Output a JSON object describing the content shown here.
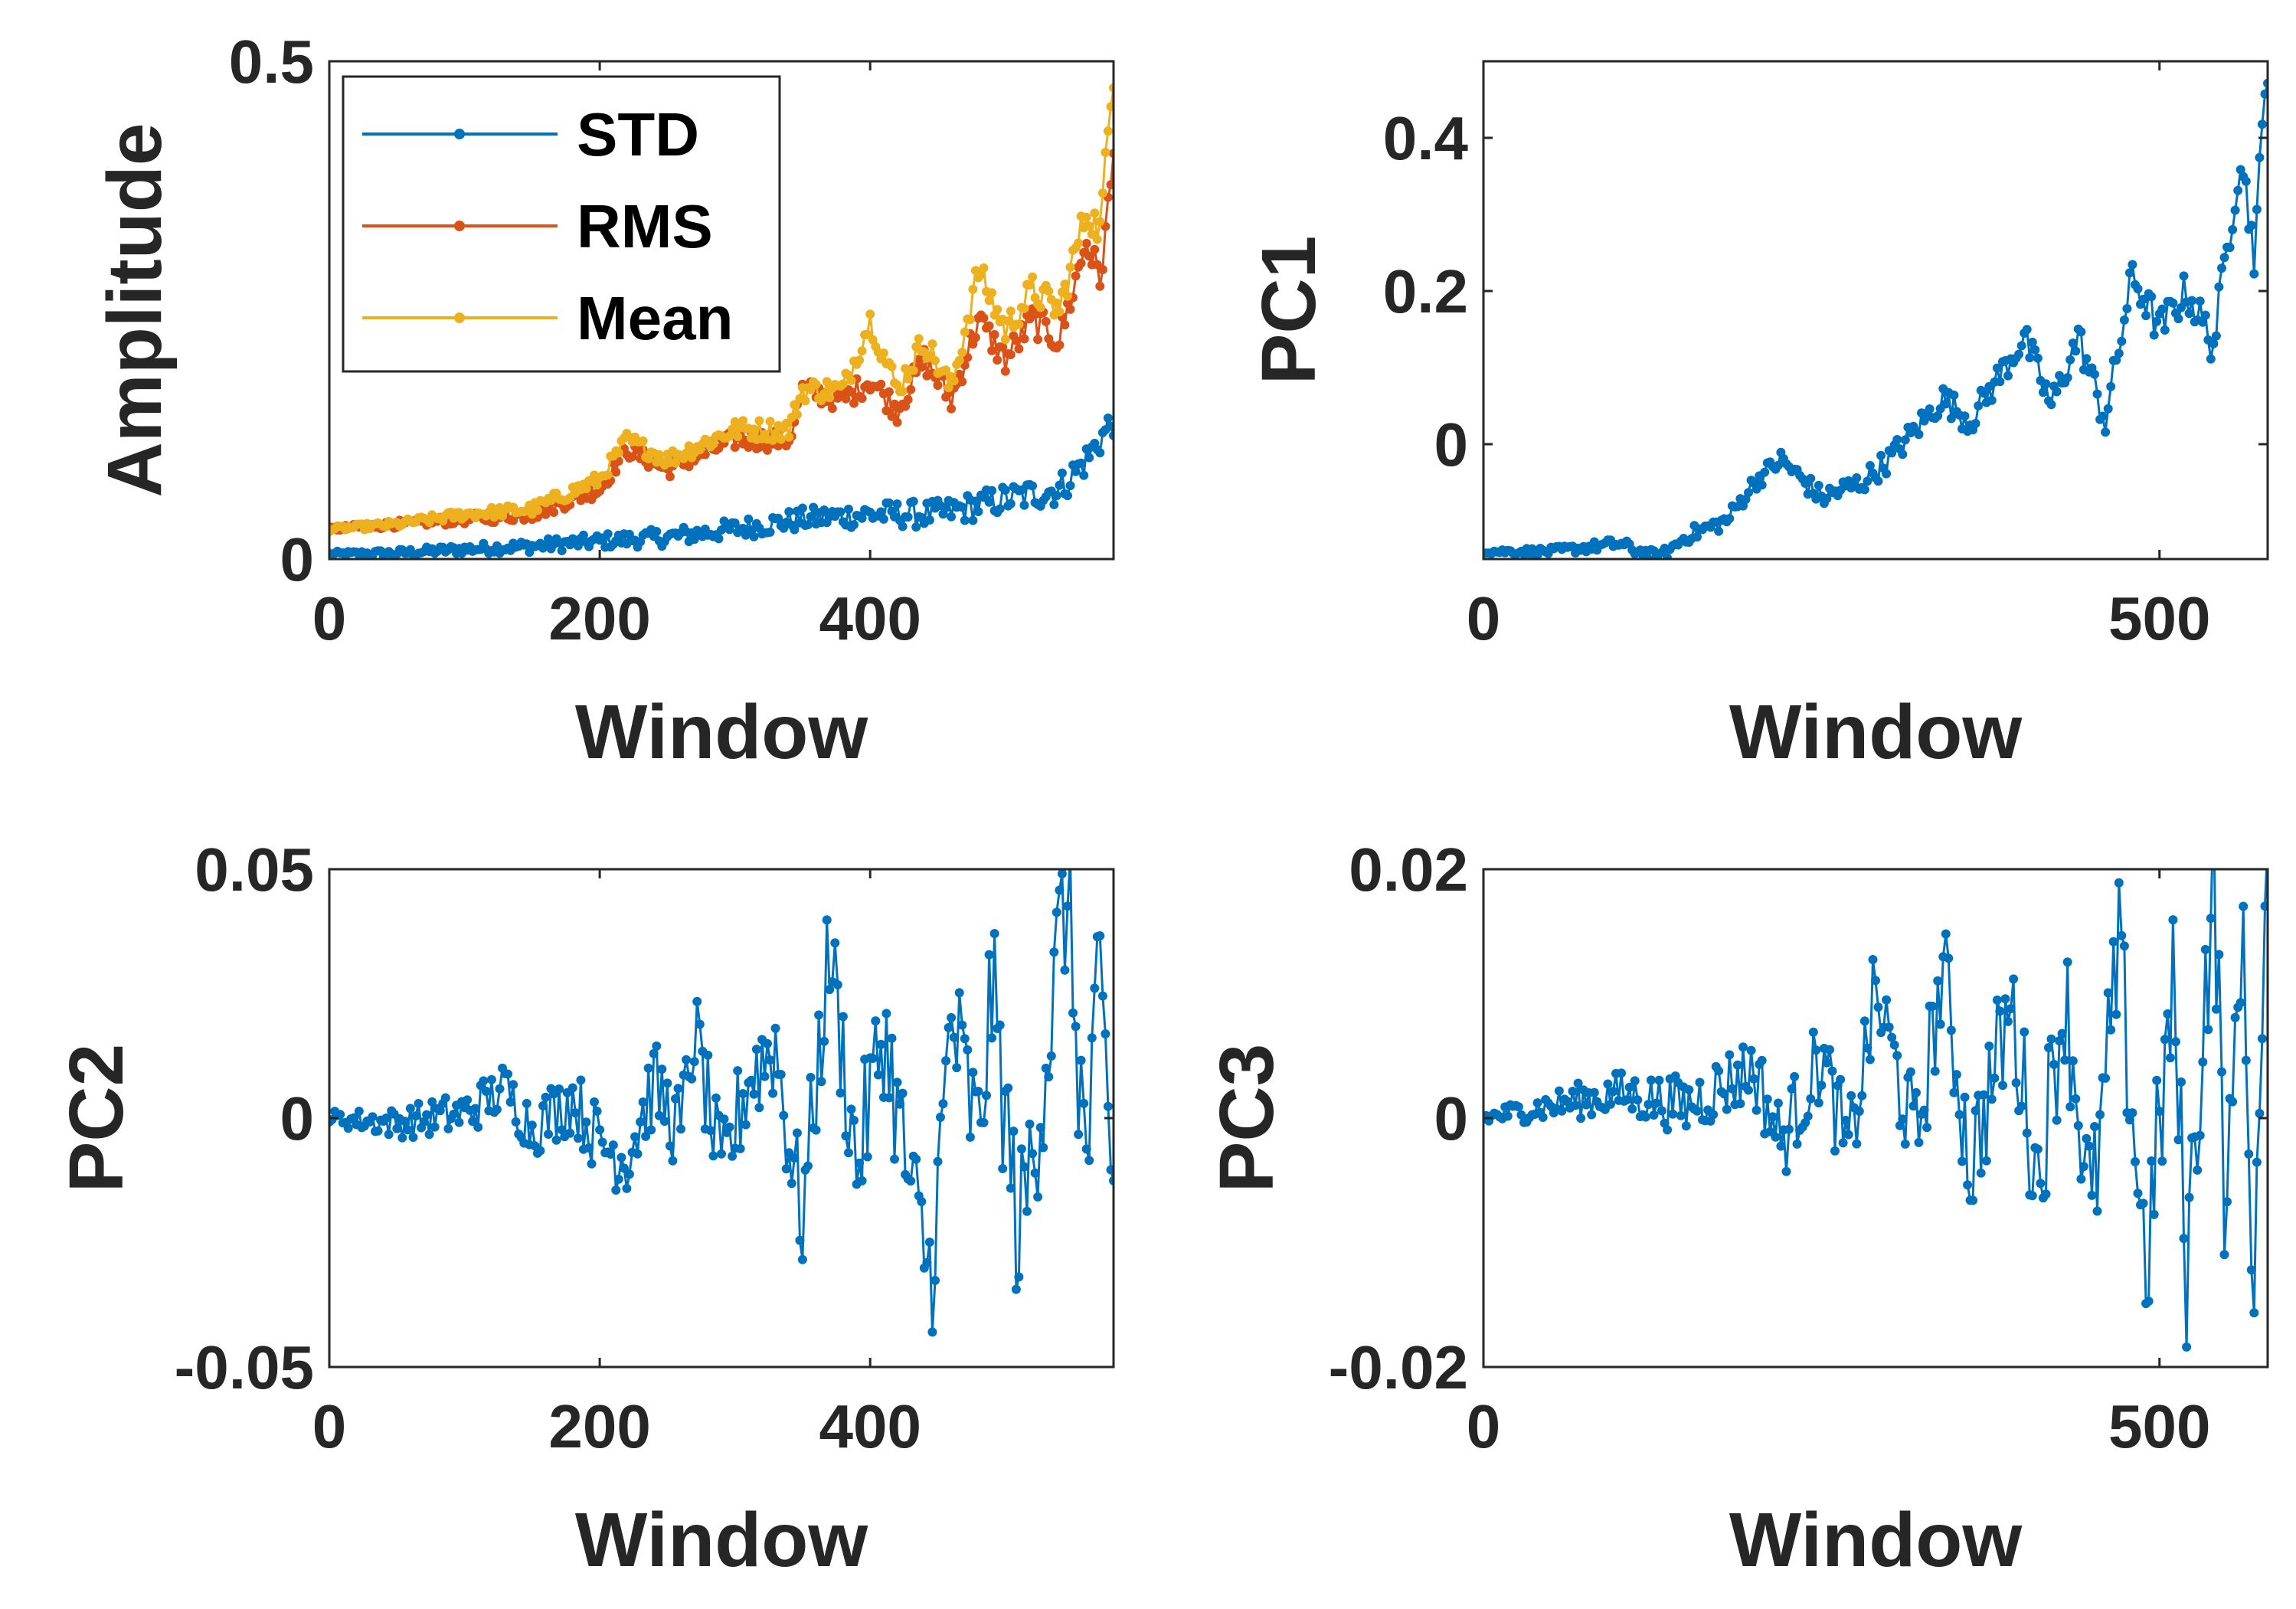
{
  "colors": {
    "std": "#0072BD",
    "rms": "#D95319",
    "mean": "#EDB120",
    "axis": "#262626"
  },
  "chart_data": [
    {
      "id": "amplitude",
      "type": "line",
      "xlabel": "Window",
      "ylabel": "Amplitude",
      "xlim": [
        0,
        580
      ],
      "ylim": [
        0,
        0.5
      ],
      "xticks": [
        0,
        200,
        400
      ],
      "xtick_labels": [
        "0",
        "200",
        "400"
      ],
      "yticks": [
        0,
        0.5
      ],
      "ytick_labels": [
        "0",
        "0.5"
      ],
      "legend": {
        "position": "top-left",
        "entries": [
          "STD",
          "RMS",
          "Mean"
        ]
      },
      "series": [
        {
          "name": "STD",
          "color": "std",
          "points": [
            [
              0,
              0.005
            ],
            [
              50,
              0.006
            ],
            [
              100,
              0.01
            ],
            [
              150,
              0.013
            ],
            [
              200,
              0.018
            ],
            [
              250,
              0.022
            ],
            [
              300,
              0.03
            ],
            [
              350,
              0.04
            ],
            [
              400,
              0.045
            ],
            [
              450,
              0.045
            ],
            [
              500,
              0.06
            ],
            [
              540,
              0.07
            ],
            [
              560,
              0.1
            ],
            [
              580,
              0.14
            ]
          ]
        },
        {
          "name": "RMS",
          "color": "rms",
          "points": [
            [
              0,
              0.03
            ],
            [
              50,
              0.035
            ],
            [
              100,
              0.04
            ],
            [
              150,
              0.045
            ],
            [
              200,
              0.07
            ],
            [
              220,
              0.11
            ],
            [
              250,
              0.09
            ],
            [
              300,
              0.12
            ],
            [
              340,
              0.12
            ],
            [
              350,
              0.17
            ],
            [
              380,
              0.16
            ],
            [
              400,
              0.18
            ],
            [
              420,
              0.15
            ],
            [
              440,
              0.2
            ],
            [
              460,
              0.16
            ],
            [
              480,
              0.24
            ],
            [
              500,
              0.2
            ],
            [
              520,
              0.24
            ],
            [
              540,
              0.22
            ],
            [
              560,
              0.32
            ],
            [
              570,
              0.28
            ],
            [
              580,
              0.4
            ]
          ]
        },
        {
          "name": "Mean",
          "color": "mean",
          "points": [
            [
              0,
              0.03
            ],
            [
              50,
              0.035
            ],
            [
              100,
              0.045
            ],
            [
              150,
              0.05
            ],
            [
              200,
              0.08
            ],
            [
              220,
              0.12
            ],
            [
              250,
              0.1
            ],
            [
              300,
              0.13
            ],
            [
              340,
              0.13
            ],
            [
              350,
              0.17
            ],
            [
              380,
              0.17
            ],
            [
              400,
              0.24
            ],
            [
              420,
              0.17
            ],
            [
              440,
              0.22
            ],
            [
              460,
              0.17
            ],
            [
              480,
              0.29
            ],
            [
              500,
              0.23
            ],
            [
              520,
              0.27
            ],
            [
              540,
              0.25
            ],
            [
              560,
              0.35
            ],
            [
              570,
              0.33
            ],
            [
              580,
              0.49
            ]
          ]
        }
      ]
    },
    {
      "id": "pc1",
      "type": "line",
      "xlabel": "Window",
      "ylabel": "PC1",
      "xlim": [
        0,
        580
      ],
      "ylim": [
        -0.15,
        0.5
      ],
      "xticks": [
        0,
        500
      ],
      "xtick_labels": [
        "0",
        "500"
      ],
      "yticks": [
        0,
        0.2,
        0.4
      ],
      "ytick_labels": [
        "0",
        "0.2",
        "0.4"
      ],
      "series": [
        {
          "name": "PC1",
          "color": "std",
          "points": [
            [
              0,
              -0.14
            ],
            [
              50,
              -0.14
            ],
            [
              100,
              -0.13
            ],
            [
              130,
              -0.15
            ],
            [
              150,
              -0.12
            ],
            [
              180,
              -0.1
            ],
            [
              200,
              -0.05
            ],
            [
              220,
              -0.02
            ],
            [
              250,
              -0.07
            ],
            [
              280,
              -0.05
            ],
            [
              300,
              -0.02
            ],
            [
              340,
              0.06
            ],
            [
              360,
              0.03
            ],
            [
              400,
              0.14
            ],
            [
              420,
              0.05
            ],
            [
              440,
              0.14
            ],
            [
              460,
              0.03
            ],
            [
              480,
              0.22
            ],
            [
              500,
              0.15
            ],
            [
              520,
              0.2
            ],
            [
              540,
              0.13
            ],
            [
              560,
              0.38
            ],
            [
              570,
              0.25
            ],
            [
              580,
              0.5
            ]
          ]
        }
      ]
    },
    {
      "id": "pc2",
      "type": "line",
      "xlabel": "Window",
      "ylabel": "PC2",
      "xlim": [
        0,
        580
      ],
      "ylim": [
        -0.05,
        0.05
      ],
      "xticks": [
        0,
        200,
        400
      ],
      "xtick_labels": [
        "0",
        "200",
        "400"
      ],
      "yticks": [
        -0.05,
        0,
        0.05
      ],
      "ytick_labels": [
        "-0.05",
        "0",
        "0.05"
      ],
      "series": [
        {
          "name": "PC2",
          "color": "std",
          "points": [
            [
              0,
              0
            ],
            [
              50,
              -0.001
            ],
            [
              100,
              0.001
            ],
            [
              130,
              0.006
            ],
            [
              150,
              -0.002
            ],
            [
              180,
              0.004
            ],
            [
              200,
              -0.005
            ],
            [
              220,
              -0.008
            ],
            [
              240,
              0.007
            ],
            [
              260,
              -0.003
            ],
            [
              270,
              0.018
            ],
            [
              290,
              -0.012
            ],
            [
              310,
              0.008
            ],
            [
              330,
              0.015
            ],
            [
              340,
              -0.005
            ],
            [
              350,
              -0.02
            ],
            [
              370,
              0.034
            ],
            [
              390,
              -0.01
            ],
            [
              410,
              0.018
            ],
            [
              430,
              -0.015
            ],
            [
              445,
              -0.032
            ],
            [
              460,
              0.02
            ],
            [
              480,
              -0.005
            ],
            [
              490,
              0.026
            ],
            [
              510,
              -0.025
            ],
            [
              530,
              0.012
            ],
            [
              545,
              0.046
            ],
            [
              560,
              -0.01
            ],
            [
              570,
              0.025
            ],
            [
              580,
              -0.015
            ]
          ]
        }
      ]
    },
    {
      "id": "pc3",
      "type": "line",
      "xlabel": "Window",
      "ylabel": "PC3",
      "xlim": [
        0,
        580
      ],
      "ylim": [
        -0.02,
        0.02
      ],
      "xticks": [
        0,
        500
      ],
      "xtick_labels": [
        "0",
        "500"
      ],
      "yticks": [
        -0.02,
        0,
        0.02
      ],
      "ytick_labels": [
        "-0.02",
        "0",
        "0.02"
      ],
      "series": [
        {
          "name": "PC3",
          "color": "std",
          "points": [
            [
              0,
              0
            ],
            [
              50,
              0.001
            ],
            [
              100,
              0.002
            ],
            [
              150,
              0.001
            ],
            [
              200,
              0.004
            ],
            [
              220,
              -0.002
            ],
            [
              250,
              0.005
            ],
            [
              270,
              -0.003
            ],
            [
              290,
              0.01
            ],
            [
              320,
              -0.002
            ],
            [
              340,
              0.012
            ],
            [
              360,
              -0.004
            ],
            [
              390,
              0.009
            ],
            [
              410,
              -0.005
            ],
            [
              430,
              0.01
            ],
            [
              450,
              -0.008
            ],
            [
              470,
              0.013
            ],
            [
              490,
              -0.012
            ],
            [
              510,
              0.01
            ],
            [
              520,
              -0.012
            ],
            [
              540,
              0.02
            ],
            [
              550,
              -0.01
            ],
            [
              560,
              0.016
            ],
            [
              570,
              -0.012
            ],
            [
              580,
              0.017
            ]
          ]
        }
      ]
    }
  ]
}
